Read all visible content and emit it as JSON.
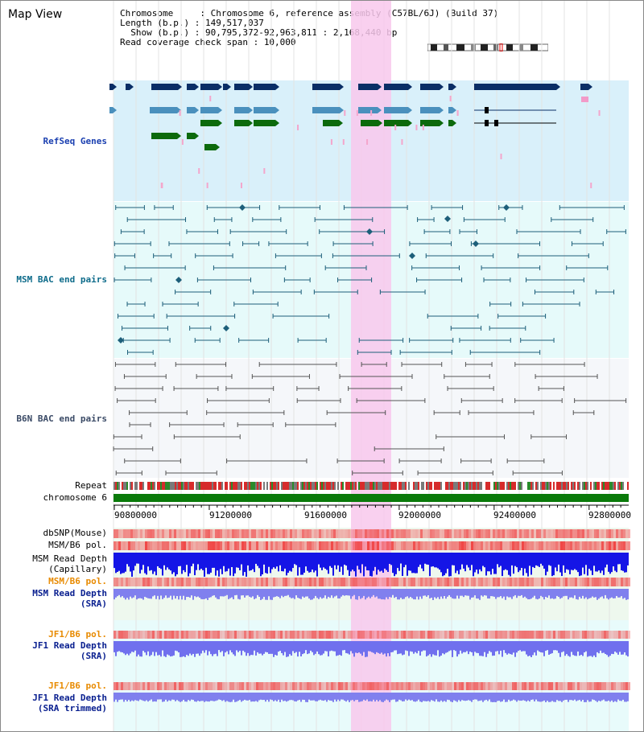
{
  "page": {
    "title": "Map View"
  },
  "info": {
    "chromosome_key": "Chromosome     : ",
    "chromosome": "Chromosome 6, reference assembly (C57BL/6J) (Build 37)",
    "length_key": "Length (b.p.) : ",
    "length": "149,517,037",
    "show_key": "  Show (b.p.) : ",
    "show": "90,795,372-92,963,811 : 2,168,440 bp",
    "span_key": "Read coverage check span : ",
    "span": "10,000"
  },
  "tracks": {
    "refseq": "RefSeq Genes",
    "msm_bac": "MSM BAC end pairs",
    "b6n_bac": "B6N BAC end pairs",
    "repeat": "Repeat",
    "chromosome": "chromosome 6",
    "dbsnp": "dbSNP(Mouse)",
    "msm_b6_pol_1": "MSM/B6 pol.",
    "msm_read_depth_cap_1": "MSM Read Depth",
    "msm_read_depth_cap_2": "(Capillary)",
    "msm_b6_pol_2": "MSM/B6 pol.",
    "msm_read_depth_sra_1": "MSM Read Depth",
    "msm_read_depth_sra_2": "(SRA)",
    "jf1_b6_pol_1": "JF1/B6 pol.",
    "jf1_read_depth_sra_1": "JF1 Read Depth",
    "jf1_read_depth_sra_2": "(SRA)",
    "jf1_b6_pol_2": "JF1/B6 pol.",
    "jf1_read_depth_trim_1": "JF1 Read Depth",
    "jf1_read_depth_trim_2": "(SRA trimmed)"
  },
  "axis": {
    "ticks": [
      "90800000",
      "91200000",
      "91600000",
      "92000000",
      "92400000",
      "92800000"
    ]
  },
  "colors": {
    "refseq_bg": "#d9f0fa",
    "msm_bg": "#e6fafa",
    "b6n_bg": "#f5f7fa",
    "highlight": "#f8c8ec",
    "gene_dark": "#0a2e66",
    "gene_mid": "#4a90bd",
    "gene_green": "#0c6a0c",
    "msm_line": "#1d5f7a",
    "b6n_line": "#555555",
    "chromosome_bar": "#0a7a0a",
    "label_blue": "#1a3fb0",
    "label_teal": "#0d6b8a",
    "label_b6n": "#3a4a66",
    "label_orange": "#e88a00",
    "label_navy": "#0a2090"
  }
}
